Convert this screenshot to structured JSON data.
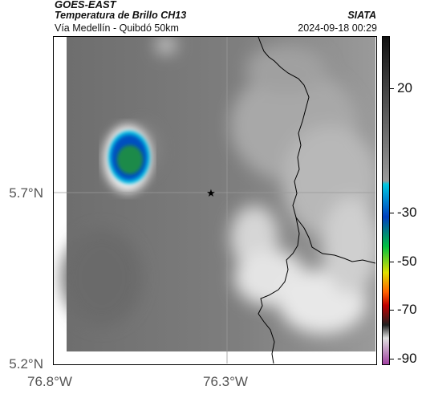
{
  "header": {
    "title": "GOES-EAST",
    "subtitle": "Temperatura de Brillo CH13",
    "route": "Vía Medellín - Quibdó 50km",
    "org": "SIATA",
    "datetime": "2024-09-18 00:29"
  },
  "map": {
    "lat_labels": [
      "5.7°N",
      "5.2°N"
    ],
    "lon_labels": [
      "76.8°W",
      "76.3°W"
    ],
    "marker": "star-icon",
    "colors": {
      "background_gray": "#787878",
      "cloud_white": "#f0f0f0",
      "storm_core": "#1a8a4a",
      "boundary_line": "#000000"
    }
  },
  "colorbar": {
    "labels": [
      "20",
      "-30",
      "-50",
      "-70",
      "-90"
    ],
    "unit_hint": "",
    "colors": [
      "#111111",
      "#9a9a9a",
      "#00c8e0",
      "#0040c0",
      "#00c040",
      "#e0e000",
      "#ff6000",
      "#c00000",
      "#202020",
      "#e0e0e0",
      "#a040a0"
    ]
  }
}
